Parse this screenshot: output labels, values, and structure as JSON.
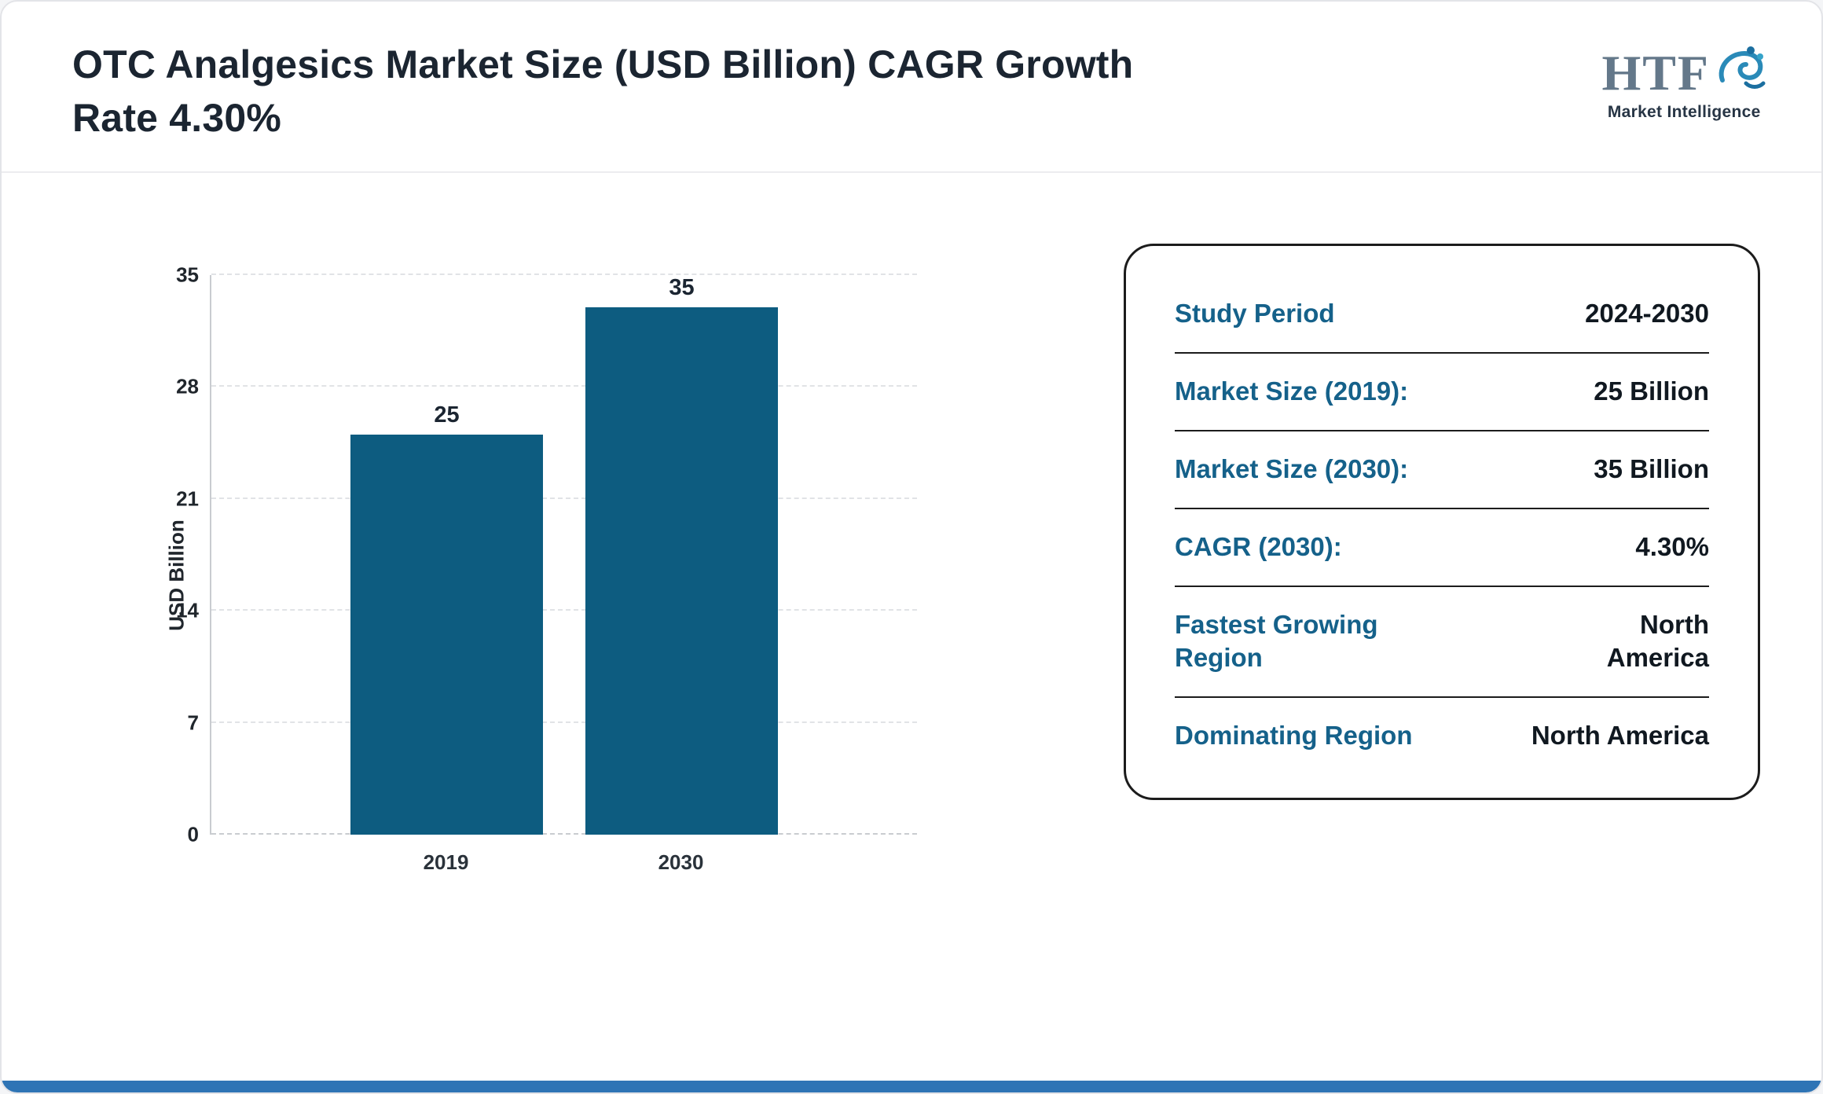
{
  "header": {
    "title": "OTC Analgesics Market Size (USD Billion) CAGR Growth Rate 4.30%",
    "logo": {
      "text": "HTF",
      "subtext": "Market Intelligence"
    }
  },
  "chart_data": {
    "type": "bar",
    "categories": [
      "2019",
      "2030"
    ],
    "values": [
      25,
      35
    ],
    "title": "OTC Analgesics Market Size (USD Billion) CAGR Growth Rate 4.30%",
    "xlabel": "",
    "ylabel": "USD Billion",
    "yticks": [
      0,
      7,
      14,
      21,
      28,
      35
    ],
    "ylim": [
      0,
      35
    ],
    "grid": "horizontal-dashed",
    "legend": "none",
    "bar_color": "#0d5c80"
  },
  "info_panel": {
    "rows": [
      {
        "label": "Study Period",
        "value": "2024-2030"
      },
      {
        "label": "Market Size (2019):",
        "value": "25 Billion"
      },
      {
        "label": "Market Size (2030):",
        "value": "35 Billion"
      },
      {
        "label": "CAGR (2030):",
        "value": "4.30%"
      },
      {
        "label": "Fastest Growing Region",
        "value": "North\nAmerica"
      },
      {
        "label": "Dominating Region",
        "value": "North America"
      }
    ]
  },
  "colors": {
    "bar_teal": "#0d5c80",
    "label_teal": "#15618a",
    "text_dark": "#1b2531",
    "footer_blue": "#2e74b5"
  }
}
